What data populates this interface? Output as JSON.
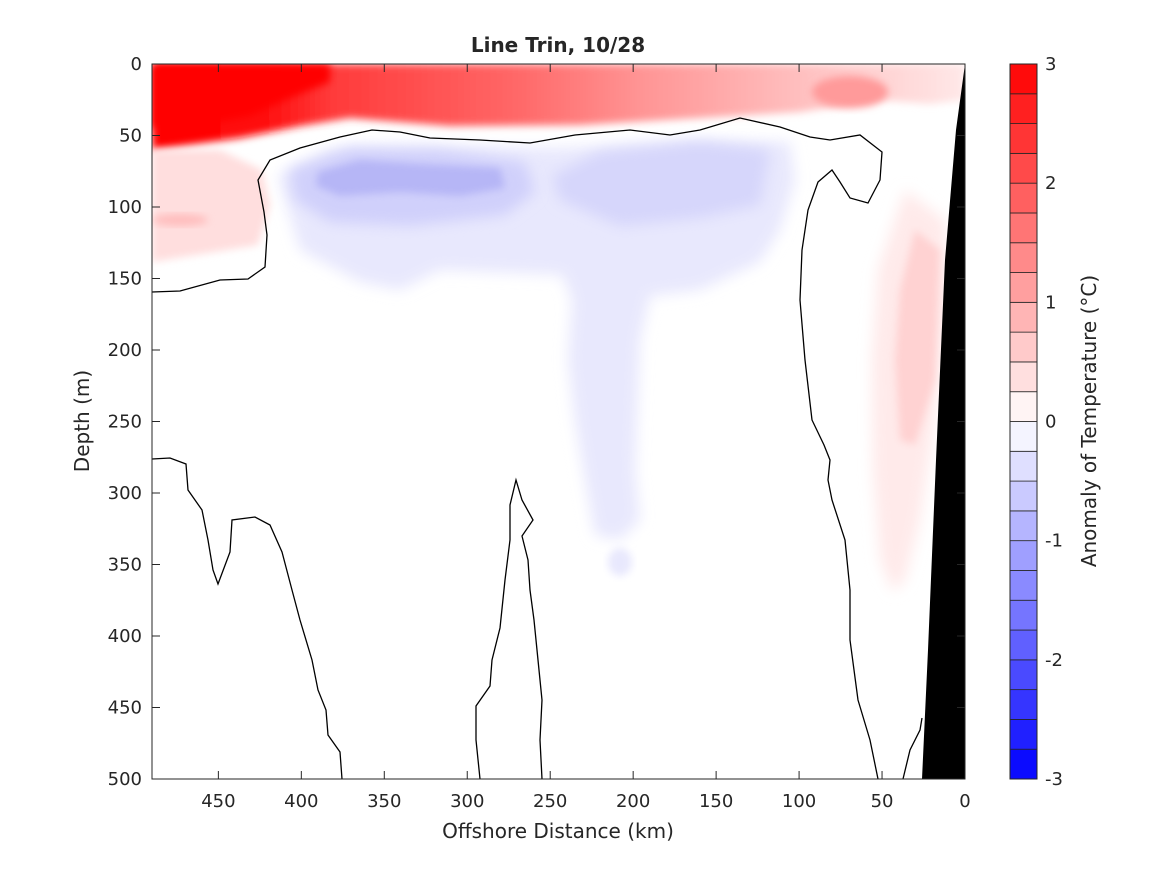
{
  "chart_data": {
    "type": "heatmap",
    "title": "Line Trin, 10/28",
    "xlabel": "Offshore Distance (km)",
    "ylabel": "Depth (m)",
    "x_reversed": true,
    "xlim": [
      0,
      490
    ],
    "ylim": [
      0,
      500
    ],
    "y_reversed": true,
    "x_ticks": [
      450,
      400,
      350,
      300,
      250,
      200,
      150,
      100,
      50,
      0
    ],
    "y_ticks": [
      0,
      50,
      100,
      150,
      200,
      250,
      300,
      350,
      400,
      450,
      500
    ],
    "colorbar": {
      "label": "Anomaly of Temperature (°C)",
      "range": [
        -3,
        3
      ],
      "levels": [
        -3,
        -2.75,
        -2.5,
        -2.25,
        -2,
        -1.75,
        -1.5,
        -1.25,
        -1,
        -0.75,
        -0.5,
        -0.25,
        0,
        0.25,
        0.5,
        0.75,
        1,
        1.25,
        1.5,
        1.75,
        2,
        2.25,
        2.5,
        2.75,
        3
      ],
      "ticks": [
        -3,
        -2,
        -1,
        0,
        1,
        2,
        3
      ],
      "colors": {
        "negative": "#0000ff",
        "zero": "#ffffff",
        "positive": "#ff0000"
      }
    },
    "regions": [
      {
        "name": "surface warm layer",
        "anomaly": 2.9,
        "x_range": [
          490,
          410
        ],
        "depth_range": [
          0,
          35
        ]
      },
      {
        "name": "surface warm band",
        "anomaly": 1.5,
        "x_range": [
          410,
          230
        ],
        "depth_range": [
          0,
          30
        ]
      },
      {
        "name": "surface warm band east",
        "anomaly": 0.9,
        "x_range": [
          230,
          100
        ],
        "depth_range": [
          0,
          30
        ]
      },
      {
        "name": "nearshore surface warm patch",
        "anomaly": 1.0,
        "x_range": [
          85,
          45
        ],
        "depth_range": [
          10,
          30
        ]
      },
      {
        "name": "offshore subsurface warm",
        "anomaly": 0.4,
        "x_range": [
          490,
          430
        ],
        "depth_range": [
          80,
          140
        ]
      },
      {
        "name": "subsurface cold core west",
        "anomaly": -0.8,
        "x_range": [
          380,
          260
        ],
        "depth_range": [
          60,
          100
        ]
      },
      {
        "name": "subsurface cold core east",
        "anomaly": -0.5,
        "x_range": [
          235,
          120
        ],
        "depth_range": [
          60,
          110
        ]
      },
      {
        "name": "cold tongue",
        "anomaly": -0.2,
        "x_range": [
          240,
          190
        ],
        "depth_range": [
          100,
          360
        ]
      },
      {
        "name": "nearshore deep warm",
        "anomaly": 0.4,
        "x_range": [
          55,
          15
        ],
        "depth_range": [
          100,
          370
        ]
      }
    ],
    "bathymetry": {
      "color": "#000000",
      "coast_x": 0,
      "bottom_x_at_500m": 25
    }
  }
}
